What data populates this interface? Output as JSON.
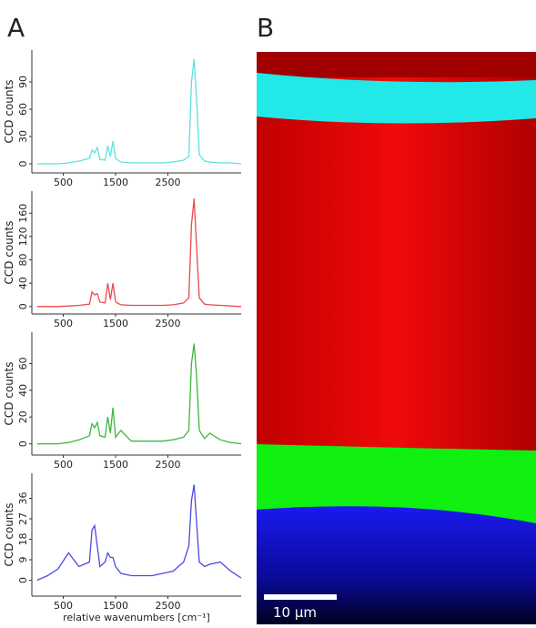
{
  "panels": {
    "a": "A",
    "b": "B"
  },
  "scale_bar": "10 μm",
  "chart_data": [
    {
      "type": "line",
      "ylabel": "CCD counts",
      "color": "#5fe0e0",
      "x": [
        0,
        200,
        400,
        600,
        800,
        1000,
        1050,
        1100,
        1150,
        1200,
        1300,
        1350,
        1400,
        1450,
        1500,
        1600,
        1800,
        2000,
        2200,
        2400,
        2600,
        2800,
        2900,
        2950,
        3000,
        3050,
        3100,
        3200,
        3300,
        3500,
        3700,
        3900
      ],
      "values": [
        0,
        0,
        0,
        1,
        3,
        6,
        15,
        12,
        18,
        5,
        4,
        20,
        8,
        25,
        6,
        2,
        1,
        1,
        1,
        1,
        2,
        4,
        8,
        90,
        115,
        70,
        10,
        3,
        2,
        1,
        1,
        0
      ],
      "xlim": [
        -100,
        3900
      ],
      "xticks": [
        500,
        1500,
        2500
      ],
      "ylim": [
        -5,
        120
      ],
      "yticks": [
        0,
        30,
        60,
        90
      ]
    },
    {
      "type": "line",
      "ylabel": "CCD counts",
      "color": "#e84a4a",
      "x": [
        0,
        200,
        400,
        600,
        800,
        1000,
        1050,
        1100,
        1150,
        1200,
        1300,
        1350,
        1400,
        1450,
        1500,
        1600,
        1800,
        2000,
        2200,
        2400,
        2600,
        2800,
        2900,
        2950,
        3000,
        3050,
        3100,
        3200,
        3300,
        3500,
        3700,
        3900
      ],
      "values": [
        0,
        0,
        0,
        1,
        2,
        4,
        25,
        20,
        22,
        8,
        6,
        40,
        12,
        40,
        8,
        3,
        2,
        2,
        2,
        2,
        3,
        6,
        15,
        140,
        185,
        100,
        15,
        4,
        3,
        2,
        1,
        0
      ],
      "xlim": [
        -100,
        3900
      ],
      "xticks": [
        500,
        1500,
        2500
      ],
      "ylim": [
        -5,
        190
      ],
      "yticks": [
        0,
        40,
        80,
        120,
        160
      ]
    },
    {
      "type": "line",
      "ylabel": "CCD counts",
      "color": "#3cb83c",
      "x": [
        0,
        200,
        400,
        600,
        800,
        1000,
        1050,
        1100,
        1150,
        1200,
        1300,
        1350,
        1400,
        1450,
        1500,
        1600,
        1800,
        2000,
        2200,
        2400,
        2600,
        2800,
        2900,
        2950,
        3000,
        3050,
        3100,
        3200,
        3300,
        3500,
        3700,
        3900
      ],
      "values": [
        0,
        0,
        0,
        1,
        3,
        6,
        15,
        12,
        16,
        6,
        5,
        20,
        8,
        27,
        5,
        10,
        2,
        2,
        2,
        2,
        3,
        5,
        10,
        60,
        75,
        50,
        10,
        4,
        8,
        3,
        1,
        0
      ],
      "xlim": [
        -100,
        3900
      ],
      "xticks": [
        500,
        1500,
        2500
      ],
      "ylim": [
        -5,
        80
      ],
      "yticks": [
        0,
        20,
        40,
        60
      ]
    },
    {
      "type": "line",
      "ylabel": "CCD counts",
      "xlabel": "relative wavenumbers [cm⁻¹]",
      "color": "#4a4ae0",
      "x": [
        0,
        200,
        400,
        600,
        800,
        1000,
        1050,
        1100,
        1150,
        1200,
        1300,
        1350,
        1400,
        1450,
        1500,
        1600,
        1800,
        2000,
        2200,
        2400,
        2600,
        2800,
        2900,
        2950,
        3000,
        3050,
        3100,
        3200,
        3300,
        3500,
        3700,
        3900
      ],
      "values": [
        0,
        2,
        5,
        12,
        6,
        8,
        22,
        24,
        15,
        6,
        8,
        12,
        10,
        10,
        6,
        3,
        2,
        2,
        2,
        3,
        4,
        8,
        15,
        35,
        42,
        25,
        8,
        6,
        7,
        8,
        4,
        1
      ],
      "xlim": [
        -100,
        3900
      ],
      "xticks": [
        500,
        1500,
        2500
      ],
      "ylim": [
        -5,
        45
      ],
      "yticks": [
        0,
        9,
        18,
        27,
        36
      ]
    }
  ]
}
